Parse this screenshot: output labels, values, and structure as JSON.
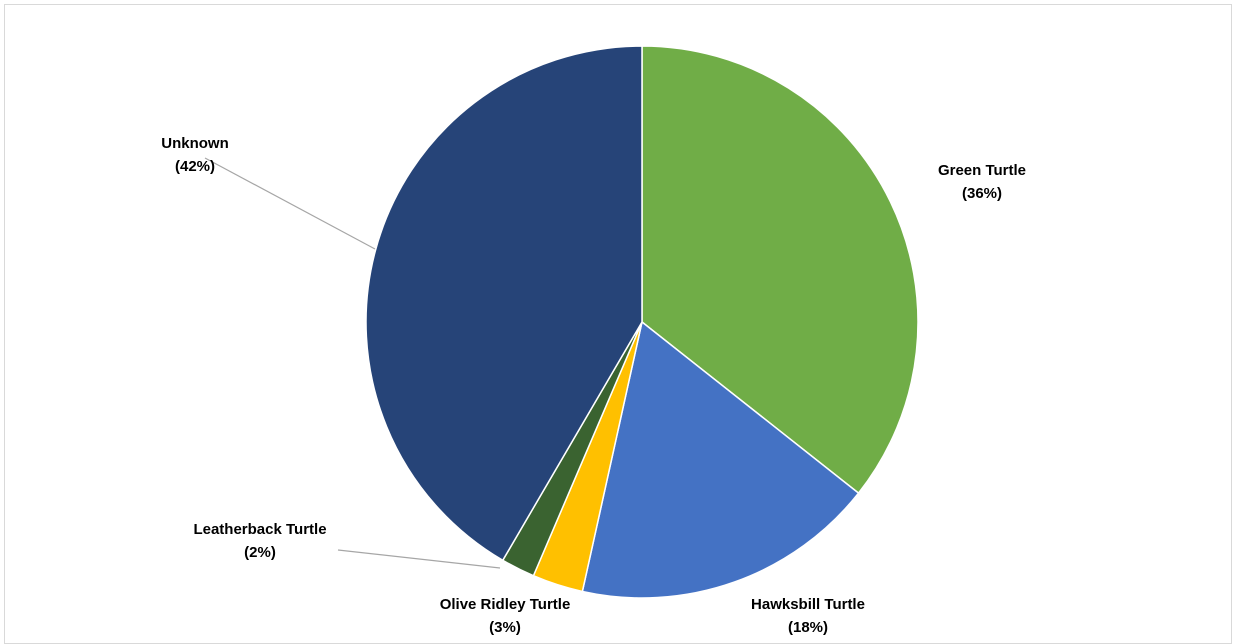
{
  "chart_data": {
    "type": "pie",
    "title": "",
    "slices": [
      {
        "name": "Green Turtle",
        "value": 36,
        "label": "(36%)",
        "color": "#70ad47"
      },
      {
        "name": "Hawksbill Turtle",
        "value": 18,
        "label": "(18%)",
        "color": "#4472c4"
      },
      {
        "name": "Olive Ridley Turtle",
        "value": 3,
        "label": "(3%)",
        "color": "#ffc000"
      },
      {
        "name": "Leatherback Turtle",
        "value": 2,
        "label": "(2%)",
        "color": "#3a6330"
      },
      {
        "name": "Unknown",
        "value": 42,
        "label": "(42%)",
        "color": "#264478"
      }
    ],
    "start_angle": "12 o'clock",
    "direction": "clockwise",
    "legend": "none"
  }
}
